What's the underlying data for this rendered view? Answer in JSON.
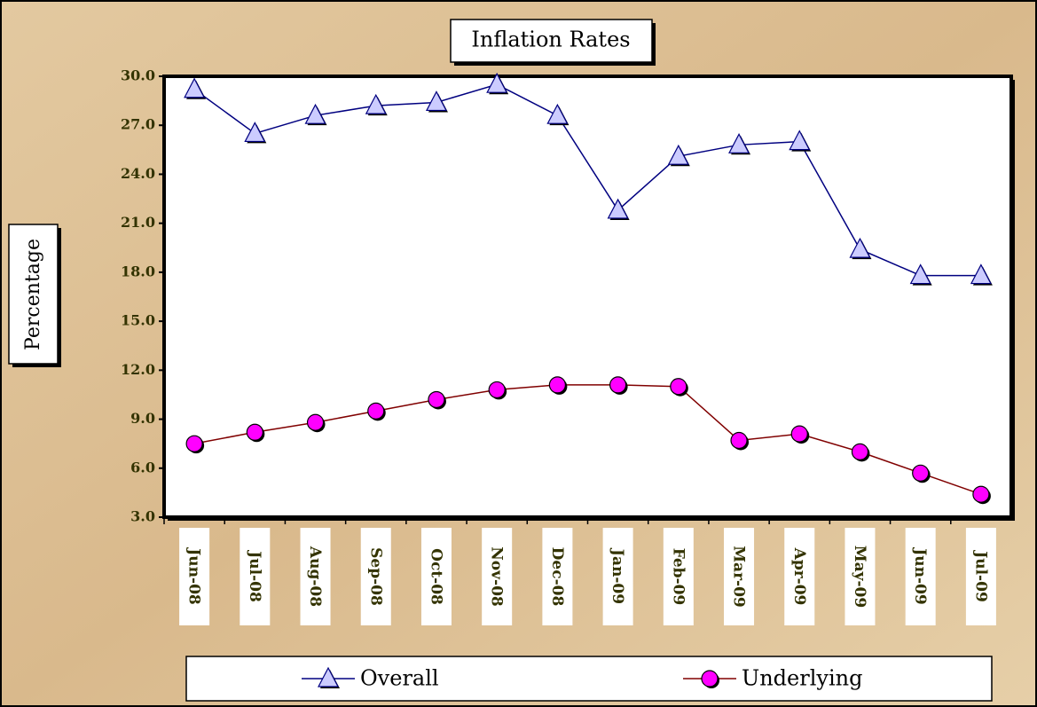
{
  "chart_data": {
    "type": "line",
    "title": "Inflation Rates",
    "y_label": "Percentage",
    "categories": [
      "Jun-08",
      "Jul-08",
      "Aug-08",
      "Sep-08",
      "Oct-08",
      "Nov-08",
      "Dec-08",
      "Jan-09",
      "Feb-09",
      "Mar-09",
      "Apr-09",
      "May-09",
      "Jun-09",
      "Jul-09"
    ],
    "series": [
      {
        "name": "Overall",
        "color": "#000080",
        "marker": "triangle",
        "marker_color": "#ccccff",
        "values": [
          29.2,
          26.5,
          27.6,
          28.2,
          28.4,
          29.5,
          27.6,
          21.8,
          25.1,
          25.8,
          26.0,
          19.4,
          17.8,
          17.8
        ]
      },
      {
        "name": "Underlying",
        "color": "#800000",
        "marker": "circle",
        "marker_color": "#ff00ff",
        "values": [
          7.5,
          8.2,
          8.8,
          9.5,
          10.2,
          10.8,
          11.1,
          11.1,
          11.0,
          7.7,
          8.1,
          7.0,
          5.7,
          4.4
        ]
      }
    ],
    "ylim": [
      3,
      30
    ],
    "yticks": [
      {
        "value": 3,
        "label": "3.0"
      },
      {
        "value": 6,
        "label": "6.0"
      },
      {
        "value": 9,
        "label": "9.0"
      },
      {
        "value": 12,
        "label": "12.0"
      },
      {
        "value": 15,
        "label": "15.0"
      },
      {
        "value": 18,
        "label": "18.0"
      },
      {
        "value": 21,
        "label": "21.0"
      },
      {
        "value": 24,
        "label": "24.0"
      },
      {
        "value": 27,
        "label": "27.0"
      },
      {
        "value": 30,
        "label": "30.0"
      }
    ],
    "grid": false,
    "legend": "bottom"
  }
}
